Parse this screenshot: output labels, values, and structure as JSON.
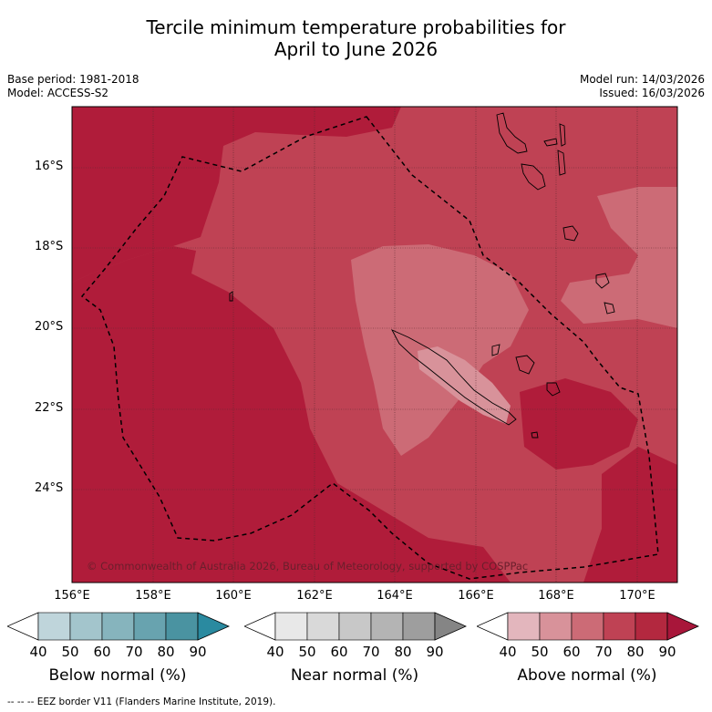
{
  "title": {
    "line1": "Tercile minimum temperature probabilities for",
    "line2": "April to June 2026"
  },
  "info": {
    "base_period": "Base period: 1981-2018",
    "model": "Model: ACCESS-S2",
    "model_run": "Model run: 14/03/2026",
    "issued": "Issued: 16/03/2026"
  },
  "map": {
    "lat_labels": [
      "16°S",
      "18°S",
      "20°S",
      "22°S",
      "24°S"
    ],
    "lon_labels": [
      "156°E",
      "158°E",
      "160°E",
      "162°E",
      "164°E",
      "166°E",
      "168°E",
      "170°E"
    ],
    "copyright": "© Commonwealth of Australia 2026, Bureau of Meteorology, supported by COSPPac",
    "colors": {
      "above_90": "#b01c3a",
      "above_80": "#bf4254",
      "above_70": "#cc6b76",
      "above_60": "#d8929a",
      "ocean_dominant": "above_80_90"
    }
  },
  "colorbars": [
    {
      "name": "below",
      "title": "Below normal (%)",
      "ticks": [
        "40",
        "50",
        "60",
        "70",
        "80",
        "90"
      ],
      "colors": [
        "#bfd5db",
        "#a3c5cc",
        "#86b4bd",
        "#68a3af",
        "#4a93a1",
        "#2a8aa0"
      ]
    },
    {
      "name": "near",
      "title": "Near normal (%)",
      "ticks": [
        "40",
        "50",
        "60",
        "70",
        "80",
        "90"
      ],
      "colors": [
        "#e8e8e8",
        "#d9d9d9",
        "#c8c8c8",
        "#b4b4b4",
        "#9e9e9e",
        "#858585"
      ]
    },
    {
      "name": "above",
      "title": "Above normal (%)",
      "ticks": [
        "40",
        "50",
        "60",
        "70",
        "80",
        "90"
      ],
      "colors": [
        "#e3b6bd",
        "#d8929a",
        "#cc6b76",
        "#bf4254",
        "#b3283f",
        "#a8163a"
      ]
    }
  ],
  "footer": "--  --  -- EEZ border V11 (Flanders Marine Institute, 2019)."
}
